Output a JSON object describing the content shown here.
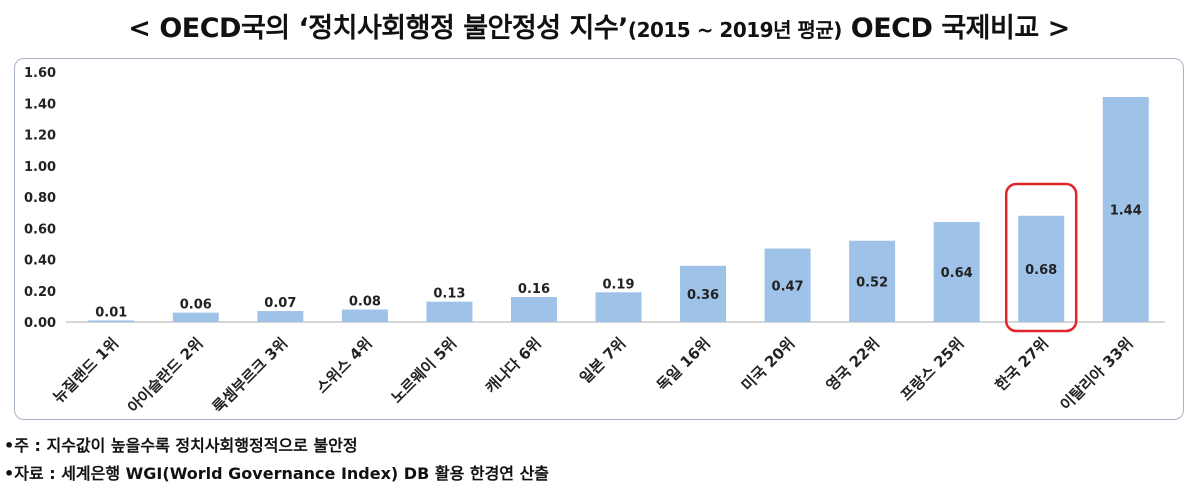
{
  "title": {
    "main_before": "< OECD국의 ‘정치사회행정 불안정성 지수’",
    "paren": "(2015 ~ 2019년 평균)",
    "main_after": " OECD 국제비교 >"
  },
  "notes": {
    "note1": "•주 : 지수값이 높을수록 정치사회행정적으로 불안정",
    "note2": "•자료 : 세계은행 WGI(World Governance Index) DB 활용 한경연 산출"
  },
  "colors": {
    "bar": "#9fc3e8",
    "highlight_box": "#e0262b",
    "axis": "#c8c8c8"
  },
  "chart_data": {
    "type": "bar",
    "categories": [
      "뉴질랜드 1위",
      "아이슬란드 2위",
      "룩셈부르크 3위",
      "스위스 4위",
      "노르웨이 5위",
      "캐나다 6위",
      "일본 7위",
      "독일 16위",
      "미국 20위",
      "영국 22위",
      "프랑스 25위",
      "한국 27위",
      "이탈리아 33위"
    ],
    "values": [
      0.01,
      0.06,
      0.07,
      0.08,
      0.13,
      0.16,
      0.19,
      0.36,
      0.47,
      0.52,
      0.64,
      0.68,
      1.44
    ],
    "data_labels": [
      "0.01",
      "0.06",
      "0.07",
      "0.08",
      "0.13",
      "0.16",
      "0.19",
      "0.36",
      "0.47",
      "0.52",
      "0.64",
      "0.68",
      "1.44"
    ],
    "y_ticks": [
      "0.00",
      "0.20",
      "0.40",
      "0.60",
      "0.80",
      "1.00",
      "1.20",
      "1.40",
      "1.60"
    ],
    "ylim": [
      0,
      1.6
    ],
    "grid": false,
    "highlight_category": "한국 27위"
  }
}
